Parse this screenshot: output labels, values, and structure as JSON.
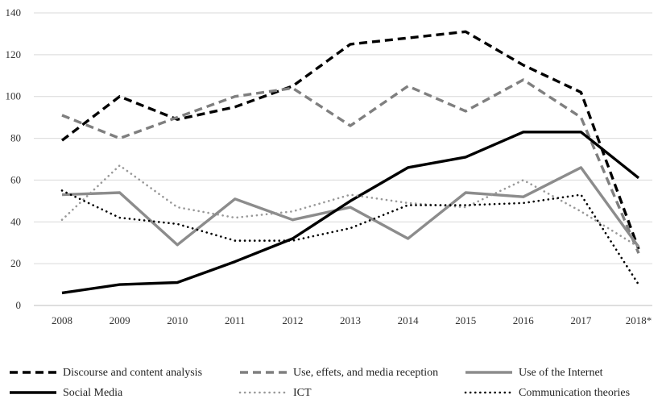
{
  "chart_data": {
    "type": "line",
    "title": "",
    "xlabel": "",
    "ylabel": "",
    "categories": [
      "2008",
      "2009",
      "2010",
      "2011",
      "2012",
      "2013",
      "2014",
      "2015",
      "2016",
      "2017",
      "2018*"
    ],
    "ylim": [
      0,
      140
    ],
    "yticks": [
      0,
      20,
      40,
      60,
      80,
      100,
      120,
      140
    ],
    "grid": "horizontal",
    "legend_position": "bottom",
    "series": [
      {
        "name": "Discourse and content analysis",
        "values": [
          79,
          100,
          89,
          95,
          105,
          125,
          128,
          131,
          115,
          102,
          27
        ],
        "color": "#000000",
        "style": "dashed",
        "width": "thick"
      },
      {
        "name": "Use, effets, and media reception",
        "values": [
          91,
          80,
          90,
          100,
          104,
          86,
          105,
          93,
          108,
          90,
          25
        ],
        "color": "#7f7f7f",
        "style": "dashed",
        "width": "thick"
      },
      {
        "name": "Use of the Internet",
        "values": [
          53,
          54,
          29,
          51,
          41,
          47,
          32,
          54,
          52,
          66,
          28
        ],
        "color": "#8c8c8c",
        "style": "solid",
        "width": "thick"
      },
      {
        "name": "Social Media",
        "values": [
          6,
          10,
          11,
          21,
          32,
          50,
          66,
          71,
          83,
          83,
          61
        ],
        "color": "#000000",
        "style": "solid",
        "width": "thick"
      },
      {
        "name": "ICT",
        "values": [
          41,
          67,
          47,
          42,
          45,
          53,
          49,
          47,
          60,
          45,
          28
        ],
        "color": "#999999",
        "style": "dotted",
        "width": "medium"
      },
      {
        "name": "Communication theories",
        "values": [
          55,
          42,
          39,
          31,
          31,
          37,
          48,
          48,
          49,
          53,
          10
        ],
        "color": "#000000",
        "style": "dotted",
        "width": "medium"
      }
    ]
  }
}
